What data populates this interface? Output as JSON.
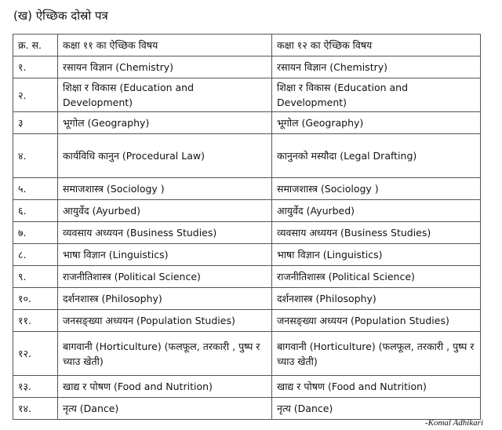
{
  "title": "(ख) ऐच्छिक दोस्रो पत्र",
  "header": [
    "क्र. स.",
    "कक्षा  ११ का ऐच्छिक विषय",
    "कक्षा १२ का ऐच्छिक विषय"
  ],
  "rows": [
    {
      "n": "१.",
      "c11": "रसायन विज्ञान (Chemistry)",
      "c12": "रसायन विज्ञान (Chemistry)"
    },
    {
      "n": "२.",
      "c11": "शिक्षा र विकास (Education and Development)",
      "c12": "शिक्षा र विकास (Education and Development)"
    },
    {
      "n": "३",
      "c11": "भूगोल (Geography)",
      "c12": "भूगोल (Geography)"
    },
    {
      "n": "४.",
      "c11": "कार्यविधि कानुन (Procedural Law)",
      "c12": "कानुनको मस्यौदा (Legal Drafting)"
    },
    {
      "n": "५.",
      "c11": "समाजशास्त्र (Sociology )",
      "c12": "समाजशास्त्र (Sociology )"
    },
    {
      "n": "६.",
      "c11": "आयुर्वेद (Ayurbed)",
      "c12": "आयुर्वेद (Ayurbed)"
    },
    {
      "n": "७.",
      "c11": "व्यवसाय अध्ययन (Business Studies)",
      "c12": "व्यवसाय अध्ययन (Business Studies)"
    },
    {
      "n": "८.",
      "c11": "भाषा विज्ञान (Linguistics)",
      "c12": "भाषा विज्ञान (Linguistics)"
    },
    {
      "n": "९.",
      "c11": "राजनीतिशास्त्र (Political Science)",
      "c12": "राजनीतिशास्त्र (Political Science)"
    },
    {
      "n": "१०.",
      "c11": "दर्शनशास्त्र (Philosophy)",
      "c12": "दर्शनशास्त्र (Philosophy)"
    },
    {
      "n": "११.",
      "c11": "जनसङ्ख्या अध्ययन (Population Studies)",
      "c12": "जनसङ्ख्या अध्ययन (Population Studies)"
    },
    {
      "n": "१२.",
      "c11": "बागवानी (Horticulture) (फलफूल, तरकारी , पुष्प  र च्याउ खेती)",
      "c12": "बागवानी (Horticulture) (फलफूल, तरकारी , पुष्प  र च्याउ खेती)"
    },
    {
      "n": "१३.",
      "c11": "खाद्य र पोषण  (Food and Nutrition)",
      "c12": "खाद्य र पोषण  (Food and Nutrition)"
    },
    {
      "n": "१४.",
      "c11": "नृत्य (Dance)",
      "c12": "नृत्य (Dance)"
    }
  ],
  "signature": "-Komal Adhikari"
}
